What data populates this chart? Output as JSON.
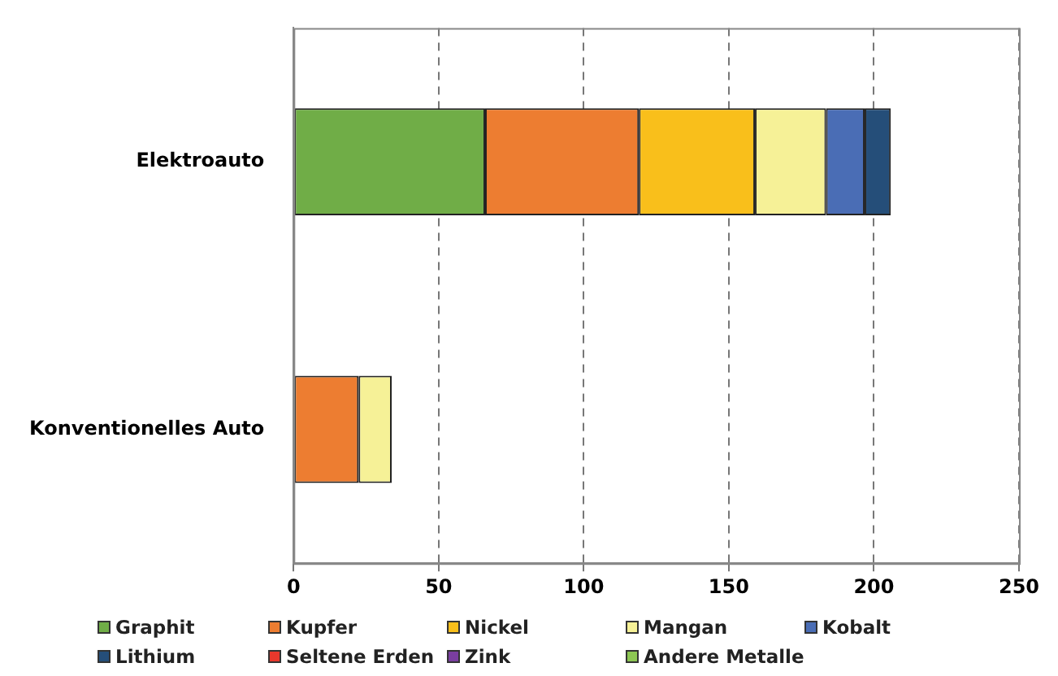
{
  "chart_data": {
    "type": "bar",
    "orientation": "horizontal",
    "stacked": true,
    "categories": [
      "Elektroauto",
      "Konventionelles Auto"
    ],
    "series": [
      {
        "name": "Graphit",
        "color": "#70ad47",
        "values": [
          66,
          null
        ]
      },
      {
        "name": "Kupfer",
        "color": "#ed7d31",
        "values": [
          53,
          22.4
        ]
      },
      {
        "name": "Nickel",
        "color": "#f9bf1b",
        "values": [
          40,
          null
        ]
      },
      {
        "name": "Mangan",
        "color": "#f6f197",
        "values": [
          24.5,
          11.4
        ]
      },
      {
        "name": "Kobalt",
        "color": "#4a6db5",
        "values": [
          13.3,
          null
        ]
      },
      {
        "name": "Lithium",
        "color": "#254e79",
        "values": [
          9,
          null
        ]
      },
      {
        "name": "Seltene Erden",
        "color": "#e8382c",
        "values": [
          null,
          null
        ]
      },
      {
        "name": "Zink",
        "color": "#7a3ea0",
        "values": [
          null,
          null
        ]
      },
      {
        "name": "Andere Metalle",
        "color": "#8dc653",
        "values": [
          null,
          null
        ]
      }
    ],
    "xlim": [
      0,
      250
    ],
    "xticks": [
      0,
      50,
      100,
      150,
      200,
      250
    ],
    "grid": "x",
    "legend": "bottom"
  }
}
